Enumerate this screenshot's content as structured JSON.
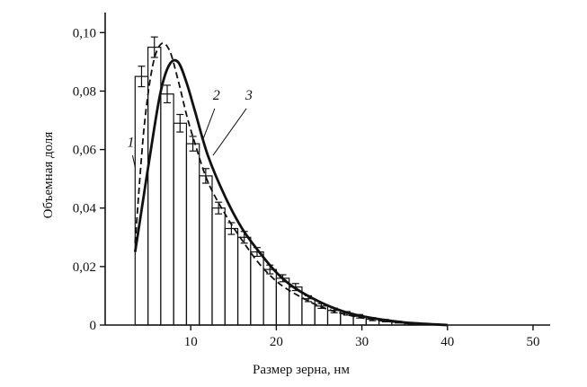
{
  "chart_data": {
    "type": "bar",
    "title": "",
    "xlabel": "Размер зерна, нм",
    "ylabel": "Объемная доля",
    "xlim": [
      0,
      52
    ],
    "ylim": [
      0,
      0.105
    ],
    "xticks": [
      {
        "value": 10,
        "label": "10"
      },
      {
        "value": 20,
        "label": "20"
      },
      {
        "value": 30,
        "label": "30"
      },
      {
        "value": 40,
        "label": "40"
      },
      {
        "value": 50,
        "label": "50"
      }
    ],
    "yticks": [
      {
        "value": 0,
        "label": "0"
      },
      {
        "value": 0.02,
        "label": "0,02"
      },
      {
        "value": 0.04,
        "label": "0,04"
      },
      {
        "value": 0.06,
        "label": "0,06"
      },
      {
        "value": 0.08,
        "label": "0,08"
      },
      {
        "value": 0.1,
        "label": "0,10"
      }
    ],
    "histogram": {
      "bin_edges": [
        3.5,
        5,
        6.5,
        8,
        9.5,
        11,
        12.5,
        14,
        15.5,
        17,
        18.5,
        20,
        21.5,
        23,
        24.5,
        26,
        27.5,
        29,
        30.5,
        32,
        33.5,
        35,
        36.5
      ],
      "values": [
        0.085,
        0.095,
        0.079,
        0.069,
        0.062,
        0.051,
        0.04,
        0.033,
        0.03,
        0.025,
        0.019,
        0.016,
        0.013,
        0.009,
        0.0065,
        0.005,
        0.004,
        0.003,
        0.002,
        0.0015,
        0.001,
        0.0005
      ],
      "errors": [
        0.0035,
        0.0035,
        0.003,
        0.003,
        0.0025,
        0.0025,
        0.002,
        0.002,
        0.002,
        0.0015,
        0.0015,
        0.0012,
        0.0012,
        0.001,
        0.0008,
        0.0008,
        0.0006,
        0.0006,
        0.0005,
        0.0004,
        0.0003,
        0.0002
      ]
    },
    "series": [
      {
        "name": "1",
        "style": "histogram",
        "color": "#111111"
      },
      {
        "name": "2",
        "style": "dashed",
        "color": "#111111",
        "x": [
          3.5,
          4.5,
          5.5,
          6.5,
          7.5,
          8.5,
          9.5,
          10.5,
          12,
          14,
          16,
          18,
          20,
          22,
          25,
          28,
          31,
          35,
          40
        ],
        "y": [
          0.028,
          0.066,
          0.088,
          0.096,
          0.094,
          0.084,
          0.072,
          0.062,
          0.049,
          0.038,
          0.029,
          0.021,
          0.015,
          0.011,
          0.0065,
          0.0037,
          0.002,
          0.0007,
          0
        ]
      },
      {
        "name": "3",
        "style": "solid",
        "color": "#111111",
        "x": [
          3.5,
          4.5,
          5.5,
          6.5,
          7.5,
          8.5,
          9.5,
          10.5,
          12,
          14,
          16,
          18,
          20,
          22,
          25,
          28,
          31,
          35,
          40
        ],
        "y": [
          0.025,
          0.044,
          0.063,
          0.08,
          0.089,
          0.09,
          0.083,
          0.073,
          0.058,
          0.044,
          0.033,
          0.025,
          0.018,
          0.013,
          0.008,
          0.0045,
          0.0025,
          0.0009,
          0
        ]
      }
    ],
    "curve_labels": [
      {
        "text": "1",
        "series": "1"
      },
      {
        "text": "2",
        "series": "2"
      },
      {
        "text": "3",
        "series": "3"
      }
    ],
    "grid": false,
    "legend": "none"
  }
}
